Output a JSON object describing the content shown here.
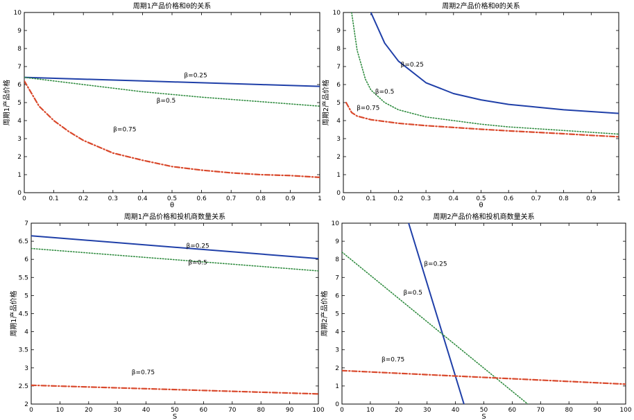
{
  "chart_data": [
    {
      "type": "line",
      "title": "周期1产品价格和θ的关系",
      "xlabel": "θ",
      "ylabel": "周期1产品价格",
      "xlim": [
        0,
        1
      ],
      "ylim": [
        0,
        10
      ],
      "xticks": [
        0,
        0.1,
        0.2,
        0.3,
        0.4,
        0.5,
        0.6,
        0.7,
        0.8,
        0.9,
        1
      ],
      "yticks": [
        0,
        1,
        2,
        3,
        4,
        5,
        6,
        7,
        8,
        9,
        10
      ],
      "xtick_labels": [
        "0",
        "0.1",
        "0.2",
        "0.3",
        "0.4",
        "0.5",
        "0.6",
        "0.7",
        "0.8",
        "0.9",
        "1"
      ],
      "ytick_labels": [
        "0",
        "1",
        "2",
        "3",
        "4",
        "5",
        "6",
        "7",
        "8",
        "9",
        "10"
      ],
      "series": [
        {
          "name": "β=0.25",
          "color": "#1f3fa8",
          "style": "solid",
          "x": [
            0,
            0.2,
            0.4,
            0.6,
            0.8,
            1.0
          ],
          "y": [
            6.4,
            6.3,
            6.2,
            6.1,
            6.0,
            5.9
          ]
        },
        {
          "name": "β=0.5",
          "color": "#2e8b3e",
          "style": "dotted",
          "x": [
            0,
            0.2,
            0.4,
            0.6,
            0.8,
            1.0
          ],
          "y": [
            6.4,
            6.0,
            5.6,
            5.3,
            5.05,
            4.8
          ]
        },
        {
          "name": "β=0.75",
          "color": "#d9482b",
          "style": "dashdot",
          "x": [
            0,
            0.05,
            0.1,
            0.15,
            0.2,
            0.3,
            0.4,
            0.5,
            0.6,
            0.7,
            0.8,
            0.9,
            1.0
          ],
          "y": [
            6.2,
            4.8,
            4.0,
            3.4,
            2.9,
            2.2,
            1.8,
            1.45,
            1.25,
            1.1,
            1.0,
            0.95,
            0.85
          ]
        }
      ],
      "annotations": [
        {
          "text": "β=0.25",
          "x": 0.58,
          "y": 6.4
        },
        {
          "text": "β=0.5",
          "x": 0.48,
          "y": 5.0
        },
        {
          "text": "β=0.75",
          "x": 0.34,
          "y": 3.4
        }
      ]
    },
    {
      "type": "line",
      "title": "周期2产品价格和θ的关系",
      "xlabel": "θ",
      "ylabel": "周期2产品价格",
      "xlim": [
        0,
        1
      ],
      "ylim": [
        0,
        10
      ],
      "xticks": [
        0,
        0.1,
        0.2,
        0.3,
        0.4,
        0.5,
        0.6,
        0.7,
        0.8,
        0.9,
        1
      ],
      "yticks": [
        0,
        1,
        2,
        3,
        4,
        5,
        6,
        7,
        8,
        9,
        10
      ],
      "xtick_labels": [
        "0",
        "0.1",
        "0.2",
        "0.3",
        "0.4",
        "0.5",
        "0.6",
        "0.7",
        "0.8",
        "0.9",
        "1"
      ],
      "ytick_labels": [
        "0",
        "1",
        "2",
        "3",
        "4",
        "5",
        "6",
        "7",
        "8",
        "9",
        "10"
      ],
      "series": [
        {
          "name": "β=0.25",
          "color": "#1f3fa8",
          "style": "solid",
          "x": [
            0.1,
            0.15,
            0.2,
            0.3,
            0.4,
            0.5,
            0.6,
            0.7,
            0.8,
            0.9,
            1.0
          ],
          "y": [
            10.0,
            8.3,
            7.3,
            6.1,
            5.5,
            5.15,
            4.9,
            4.75,
            4.6,
            4.5,
            4.4
          ]
        },
        {
          "name": "β=0.5",
          "color": "#2e8b3e",
          "style": "dotted",
          "x": [
            0.03,
            0.05,
            0.08,
            0.1,
            0.15,
            0.2,
            0.3,
            0.4,
            0.5,
            0.6,
            0.7,
            0.8,
            0.9,
            1.0
          ],
          "y": [
            10.0,
            7.9,
            6.3,
            5.7,
            5.0,
            4.6,
            4.2,
            4.0,
            3.8,
            3.65,
            3.55,
            3.45,
            3.35,
            3.25
          ]
        },
        {
          "name": "β=0.75",
          "color": "#d9482b",
          "style": "dashdot",
          "x": [
            0.01,
            0.03,
            0.05,
            0.1,
            0.2,
            0.3,
            0.4,
            0.5,
            0.6,
            0.7,
            0.8,
            0.9,
            1.0
          ],
          "y": [
            5.0,
            4.45,
            4.25,
            4.05,
            3.85,
            3.72,
            3.62,
            3.52,
            3.43,
            3.35,
            3.27,
            3.18,
            3.1
          ]
        }
      ],
      "annotations": [
        {
          "text": "β=0.25",
          "x": 0.25,
          "y": 7.0
        },
        {
          "text": "β=0.5",
          "x": 0.15,
          "y": 5.5
        },
        {
          "text": "β=0.75",
          "x": 0.09,
          "y": 4.6
        }
      ]
    },
    {
      "type": "line",
      "title": "周期1产品价格和投机商数量关系",
      "xlabel": "S",
      "ylabel": "周期1产品价格",
      "xlim": [
        0,
        100
      ],
      "ylim": [
        2,
        7
      ],
      "xticks": [
        0,
        10,
        20,
        30,
        40,
        50,
        60,
        70,
        80,
        90,
        100
      ],
      "yticks": [
        2,
        2.5,
        3,
        3.5,
        4,
        4.5,
        5,
        5.5,
        6,
        6.5,
        7
      ],
      "xtick_labels": [
        "0",
        "10",
        "20",
        "30",
        "40",
        "50",
        "60",
        "70",
        "80",
        "90",
        "100"
      ],
      "ytick_labels": [
        "2",
        "2.5",
        "3",
        "3.5",
        "4",
        "4.5",
        "5",
        "5.5",
        "6",
        "6.5",
        "7"
      ],
      "series": [
        {
          "name": "β=0.25",
          "color": "#1f3fa8",
          "style": "solid",
          "x": [
            0,
            100
          ],
          "y": [
            6.65,
            6.02
          ]
        },
        {
          "name": "β=0.5",
          "color": "#2e8b3e",
          "style": "dotted",
          "x": [
            0,
            100
          ],
          "y": [
            6.3,
            5.68
          ]
        },
        {
          "name": "β=0.75",
          "color": "#d9482b",
          "style": "dashdot",
          "x": [
            0,
            100
          ],
          "y": [
            2.52,
            2.28
          ]
        }
      ],
      "annotations": [
        {
          "text": "β=0.25",
          "x": 58,
          "y": 6.32
        },
        {
          "text": "β=0.5",
          "x": 58,
          "y": 5.86
        },
        {
          "text": "β=0.75",
          "x": 39,
          "y": 2.82
        }
      ]
    },
    {
      "type": "line",
      "title": "周期2产品价格和投机商数量关系",
      "xlabel": "S",
      "ylabel": "周期2产品价格",
      "xlim": [
        0,
        100
      ],
      "ylim": [
        0,
        10
      ],
      "xticks": [
        0,
        10,
        20,
        30,
        40,
        50,
        60,
        70,
        80,
        90,
        100
      ],
      "yticks": [
        0,
        1,
        2,
        3,
        4,
        5,
        6,
        7,
        8,
        9,
        10
      ],
      "xtick_labels": [
        "0",
        "10",
        "20",
        "30",
        "40",
        "50",
        "60",
        "70",
        "80",
        "90",
        "100"
      ],
      "ytick_labels": [
        "0",
        "1",
        "2",
        "3",
        "4",
        "5",
        "6",
        "7",
        "8",
        "9",
        "10"
      ],
      "series": [
        {
          "name": "β=0.25",
          "color": "#1f3fa8",
          "style": "solid",
          "x": [
            23.5,
            43
          ],
          "y": [
            10.0,
            0.0
          ]
        },
        {
          "name": "β=0.5",
          "color": "#2e8b3e",
          "style": "dotted",
          "x": [
            0,
            65.5
          ],
          "y": [
            8.4,
            0.0
          ]
        },
        {
          "name": "β=0.75",
          "color": "#d9482b",
          "style": "dashdot",
          "x": [
            0,
            100
          ],
          "y": [
            1.85,
            1.1
          ]
        }
      ],
      "annotations": [
        {
          "text": "β=0.25",
          "x": 33,
          "y": 7.65
        },
        {
          "text": "β=0.5",
          "x": 25,
          "y": 6.05
        },
        {
          "text": "β=0.75",
          "x": 18,
          "y": 2.35
        }
      ]
    }
  ]
}
